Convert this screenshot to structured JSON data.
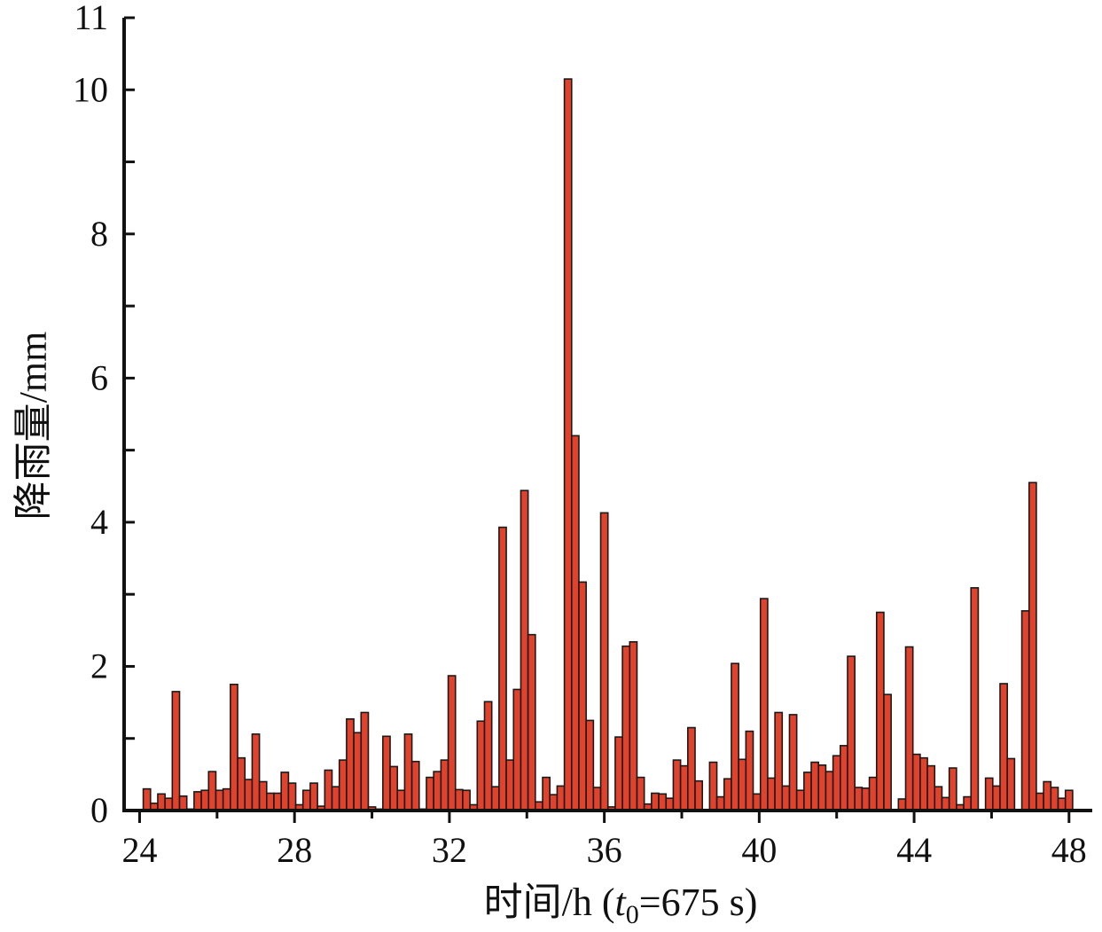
{
  "chart_data": {
    "type": "bar",
    "title": "",
    "xlabel": "时间/h (t0=675 s)",
    "xlabel_parts": {
      "main": "时间/h (",
      "var": "t",
      "sub": "0",
      "rest": "=675 s)"
    },
    "ylabel": "降雨量/mm",
    "xlim": [
      23.6,
      48.6
    ],
    "ylim": [
      0,
      11
    ],
    "xticks": [
      24,
      28,
      32,
      36,
      40,
      44,
      48
    ],
    "yticks": [
      0,
      2,
      4,
      6,
      8,
      10,
      11
    ],
    "bar_width": 0.1875,
    "bar_color": "#e0422c",
    "x": [
      24.1875,
      24.375,
      24.5625,
      24.75,
      24.9375,
      25.125,
      25.3125,
      25.5,
      25.6875,
      25.875,
      26.0625,
      26.25,
      26.4375,
      26.625,
      26.8125,
      27.0,
      27.1875,
      27.375,
      27.5625,
      27.75,
      27.9375,
      28.125,
      28.3125,
      28.5,
      28.6875,
      28.875,
      29.0625,
      29.25,
      29.4375,
      29.625,
      29.8125,
      30.0,
      30.1875,
      30.375,
      30.5625,
      30.75,
      30.9375,
      31.125,
      31.3125,
      31.5,
      31.6875,
      31.875,
      32.0625,
      32.25,
      32.4375,
      32.625,
      32.8125,
      33.0,
      33.1875,
      33.375,
      33.5625,
      33.75,
      33.9375,
      34.125,
      34.3125,
      34.5,
      34.6875,
      34.875,
      35.0625,
      35.25,
      35.4375,
      35.625,
      35.8125,
      36.0,
      36.1875,
      36.375,
      36.5625,
      36.75,
      36.9375,
      37.125,
      37.3125,
      37.5,
      37.6875,
      37.875,
      38.0625,
      38.25,
      38.4375,
      38.625,
      38.8125,
      39.0,
      39.1875,
      39.375,
      39.5625,
      39.75,
      39.9375,
      40.125,
      40.3125,
      40.5,
      40.6875,
      40.875,
      41.0625,
      41.25,
      41.4375,
      41.625,
      41.8125,
      42.0,
      42.1875,
      42.375,
      42.5625,
      42.75,
      42.9375,
      43.125,
      43.3125,
      43.5,
      43.6875,
      43.875,
      44.0625,
      44.25,
      44.4375,
      44.625,
      44.8125,
      45.0,
      45.1875,
      45.375,
      45.5625,
      45.75,
      45.9375,
      46.125,
      46.3125,
      46.5,
      46.6875,
      46.875,
      47.0625,
      47.25,
      47.4375,
      47.625,
      47.8125,
      48.0
    ],
    "values": [
      0.3,
      0.1,
      0.23,
      0.17,
      1.65,
      0.2,
      0.02,
      0.26,
      0.28,
      0.54,
      0.28,
      0.3,
      1.75,
      0.73,
      0.43,
      1.06,
      0.4,
      0.24,
      0.24,
      0.53,
      0.38,
      0.08,
      0.28,
      0.38,
      0.06,
      0.56,
      0.33,
      0.7,
      1.27,
      1.08,
      1.36,
      0.05,
      0.02,
      1.03,
      0.61,
      0.28,
      1.06,
      0.68,
      0.02,
      0.46,
      0.54,
      0.7,
      1.87,
      0.29,
      0.28,
      0.08,
      1.24,
      1.51,
      0.33,
      3.93,
      0.7,
      1.68,
      4.44,
      2.44,
      0.12,
      0.46,
      0.22,
      0.34,
      10.15,
      5.2,
      3.17,
      1.25,
      0.32,
      4.13,
      0.05,
      1.02,
      2.28,
      2.34,
      0.46,
      0.09,
      0.24,
      0.23,
      0.17,
      0.7,
      0.62,
      1.15,
      0.41,
      0.0,
      0.67,
      0.19,
      0.44,
      2.04,
      0.71,
      1.1,
      0.23,
      2.94,
      0.45,
      1.36,
      0.34,
      1.33,
      0.28,
      0.53,
      0.67,
      0.63,
      0.54,
      0.76,
      0.9,
      2.14,
      0.32,
      0.31,
      0.46,
      2.75,
      1.61,
      0.0,
      0.16,
      2.27,
      0.78,
      0.73,
      0.62,
      0.33,
      0.18,
      0.59,
      0.08,
      0.19,
      3.09,
      0.0,
      0.45,
      0.34,
      1.76,
      0.72,
      0.0,
      2.77,
      4.55,
      0.24,
      0.4,
      0.32,
      0.17,
      0.28
    ]
  }
}
